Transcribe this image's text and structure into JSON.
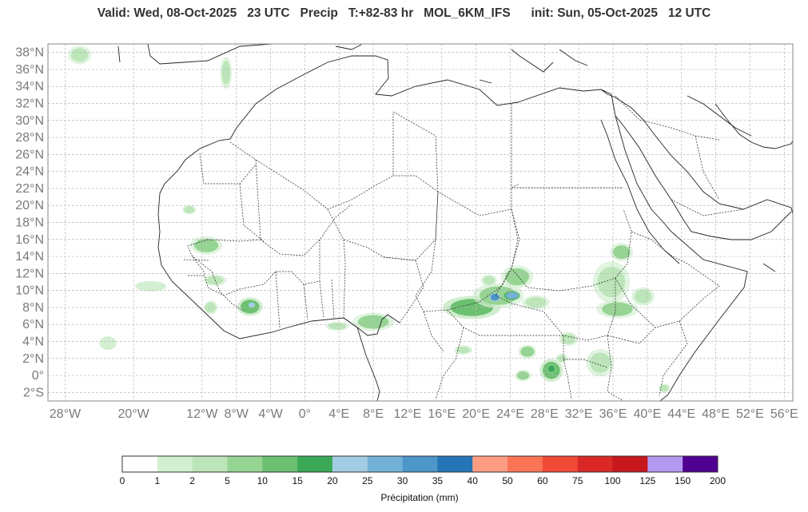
{
  "header": {
    "title": "Valid: Wed, 08-Oct-2025   23 UTC   Precip   T:+82-83 hr   MOL_6KM_IFS      init: Sun, 05-Oct-2025   12 UTC"
  },
  "map": {
    "lon_range": [
      -30,
      57
    ],
    "lat_range": [
      -3,
      39
    ],
    "grid": true,
    "lat_ticks": [
      {
        "value": 38,
        "label": "38°N"
      },
      {
        "value": 36,
        "label": "36°N"
      },
      {
        "value": 34,
        "label": "34°N"
      },
      {
        "value": 32,
        "label": "32°N"
      },
      {
        "value": 30,
        "label": "30°N"
      },
      {
        "value": 28,
        "label": "28°N"
      },
      {
        "value": 26,
        "label": "26°N"
      },
      {
        "value": 24,
        "label": "24°N"
      },
      {
        "value": 22,
        "label": "22°N"
      },
      {
        "value": 20,
        "label": "20°N"
      },
      {
        "value": 18,
        "label": "18°N"
      },
      {
        "value": 16,
        "label": "16°N"
      },
      {
        "value": 14,
        "label": "14°N"
      },
      {
        "value": 12,
        "label": "12°N"
      },
      {
        "value": 10,
        "label": "10°N"
      },
      {
        "value": 8,
        "label": "8°N"
      },
      {
        "value": 6,
        "label": "6°N"
      },
      {
        "value": 4,
        "label": "4°N"
      },
      {
        "value": 2,
        "label": "2°N"
      },
      {
        "value": 0,
        "label": "0°"
      },
      {
        "value": -2,
        "label": "2°S"
      }
    ],
    "lon_ticks": [
      {
        "value": -28,
        "label": "28°W"
      },
      {
        "value": -20,
        "label": "20°W"
      },
      {
        "value": -12,
        "label": "12°W"
      },
      {
        "value": -8,
        "label": "8°W"
      },
      {
        "value": -4,
        "label": "4°W"
      },
      {
        "value": 0,
        "label": "0°"
      },
      {
        "value": 4,
        "label": "4°E"
      },
      {
        "value": 8,
        "label": "8°E"
      },
      {
        "value": 12,
        "label": "12°E"
      },
      {
        "value": 16,
        "label": "16°E"
      },
      {
        "value": 20,
        "label": "20°E"
      },
      {
        "value": 24,
        "label": "24°E"
      },
      {
        "value": 28,
        "label": "28°E"
      },
      {
        "value": 32,
        "label": "32°E"
      },
      {
        "value": 36,
        "label": "36°E"
      },
      {
        "value": 40,
        "label": "40°E"
      },
      {
        "value": 44,
        "label": "44°E"
      },
      {
        "value": 48,
        "label": "48°E"
      },
      {
        "value": 52,
        "label": "52°E"
      },
      {
        "value": 56,
        "label": "56°E"
      }
    ],
    "colors": {
      "coast": "#222222",
      "border": "#222222",
      "grid": "#bbbbbb",
      "frame": "#888888"
    }
  },
  "precip_areas": [
    {
      "name": "cabo-verde-area",
      "lon": -26.3,
      "lat": 37.7,
      "rx": 1.0,
      "ry": 0.8,
      "level": 2
    },
    {
      "name": "iberian-coast-area",
      "lon": -9.2,
      "lat": 35.6,
      "rx": 0.5,
      "ry": 1.4,
      "level": 2
    },
    {
      "name": "mauritania-area",
      "lon": -13.5,
      "lat": 19.5,
      "rx": 0.6,
      "ry": 0.4,
      "level": 2
    },
    {
      "name": "senegal-area",
      "lon": -11.5,
      "lat": 15.3,
      "rx": 1.4,
      "ry": 0.8,
      "level": 3
    },
    {
      "name": "guinea-area",
      "lon": -10.5,
      "lat": 11.2,
      "rx": 1.0,
      "ry": 0.5,
      "level": 2
    },
    {
      "name": "atlantic-area",
      "lon": -18.0,
      "lat": 10.5,
      "rx": 1.8,
      "ry": 0.6,
      "level": 1
    },
    {
      "name": "atlantic-south-area",
      "lon": -23.0,
      "lat": 3.8,
      "rx": 1.0,
      "ry": 0.8,
      "level": 1
    },
    {
      "name": "ivory-coast-area",
      "lon": -6.4,
      "lat": 8.1,
      "rx": 1.1,
      "ry": 0.8,
      "level": 4
    },
    {
      "name": "ivory-coast-core",
      "lon": -6.2,
      "lat": 8.3,
      "rx": 0.4,
      "ry": 0.3,
      "level": 6
    },
    {
      "name": "liberia-area",
      "lon": -11.0,
      "lat": 8.0,
      "rx": 0.6,
      "ry": 0.6,
      "level": 2
    },
    {
      "name": "nigeria-coast-area",
      "lon": 8.0,
      "lat": 6.3,
      "rx": 1.8,
      "ry": 0.8,
      "level": 3
    },
    {
      "name": "benin-coast-area",
      "lon": 3.8,
      "lat": 5.8,
      "rx": 1.0,
      "ry": 0.4,
      "level": 2
    },
    {
      "name": "chad-area",
      "lon": 19.5,
      "lat": 8.0,
      "rx": 2.5,
      "ry": 1.0,
      "level": 4
    },
    {
      "name": "car-area",
      "lon": 22.6,
      "lat": 9.4,
      "rx": 2.2,
      "ry": 1.1,
      "level": 3
    },
    {
      "name": "car-core",
      "lon": 22.2,
      "lat": 9.2,
      "rx": 0.5,
      "ry": 0.4,
      "level": 8
    },
    {
      "name": "car-core-2",
      "lon": 24.2,
      "lat": 9.4,
      "rx": 0.7,
      "ry": 0.4,
      "level": 7
    },
    {
      "name": "darfur-area",
      "lon": 21.5,
      "lat": 11.2,
      "rx": 0.7,
      "ry": 0.5,
      "level": 2
    },
    {
      "name": "sudan-area",
      "lon": 24.8,
      "lat": 11.6,
      "rx": 1.4,
      "ry": 1.0,
      "level": 3
    },
    {
      "name": "south-sudan-area",
      "lon": 27.0,
      "lat": 8.6,
      "rx": 1.2,
      "ry": 0.6,
      "level": 2
    },
    {
      "name": "ethiopia-west-area",
      "lon": 35.8,
      "lat": 11.0,
      "rx": 1.6,
      "ry": 1.8,
      "level": 2
    },
    {
      "name": "ethiopia-north-area",
      "lon": 37.0,
      "lat": 14.5,
      "rx": 1.0,
      "ry": 0.8,
      "level": 3
    },
    {
      "name": "ethiopia-south-area",
      "lon": 36.5,
      "lat": 7.8,
      "rx": 1.8,
      "ry": 0.8,
      "level": 3
    },
    {
      "name": "ethiopia-east-area",
      "lon": 39.5,
      "lat": 9.3,
      "rx": 1.0,
      "ry": 0.8,
      "level": 2
    },
    {
      "name": "drc-area",
      "lon": 18.5,
      "lat": 3.0,
      "rx": 0.8,
      "ry": 0.4,
      "level": 2
    },
    {
      "name": "uganda-area",
      "lon": 30.8,
      "lat": 4.3,
      "rx": 0.8,
      "ry": 0.6,
      "level": 2
    },
    {
      "name": "congo-east-area",
      "lon": 28.8,
      "lat": 0.6,
      "rx": 1.0,
      "ry": 1.0,
      "level": 4
    },
    {
      "name": "congo-east-core",
      "lon": 28.8,
      "lat": 0.8,
      "rx": 0.4,
      "ry": 0.4,
      "level": 5
    },
    {
      "name": "ituri-area",
      "lon": 26.0,
      "lat": 2.8,
      "rx": 0.8,
      "ry": 0.6,
      "level": 3
    },
    {
      "name": "kivu-area",
      "lon": 25.5,
      "lat": 0.0,
      "rx": 0.7,
      "ry": 0.5,
      "level": 3
    },
    {
      "name": "kenya-area",
      "lon": 34.5,
      "lat": 1.5,
      "rx": 1.2,
      "ry": 1.2,
      "level": 2
    },
    {
      "name": "kenya-west-area",
      "lon": 30.0,
      "lat": 2.0,
      "rx": 0.5,
      "ry": 0.4,
      "level": 2
    },
    {
      "name": "somalia-area",
      "lon": 42.0,
      "lat": -1.5,
      "rx": 0.5,
      "ry": 0.4,
      "level": 2
    }
  ],
  "colorbar": {
    "boundaries": [
      0,
      1,
      2,
      5,
      10,
      15,
      20,
      25,
      30,
      35,
      40,
      50,
      60,
      75,
      100,
      125,
      150,
      200
    ],
    "colors": [
      "#ffffff",
      "#d3efd1",
      "#bce6b9",
      "#96d493",
      "#6cc071",
      "#3ba857",
      "#a3cde4",
      "#72b1d8",
      "#4d96c9",
      "#2474b6",
      "#fc9d83",
      "#fa7456",
      "#f04a37",
      "#da2827",
      "#c6171d",
      "#b39af0",
      "#500091"
    ],
    "label": "Précipitation (mm)"
  }
}
